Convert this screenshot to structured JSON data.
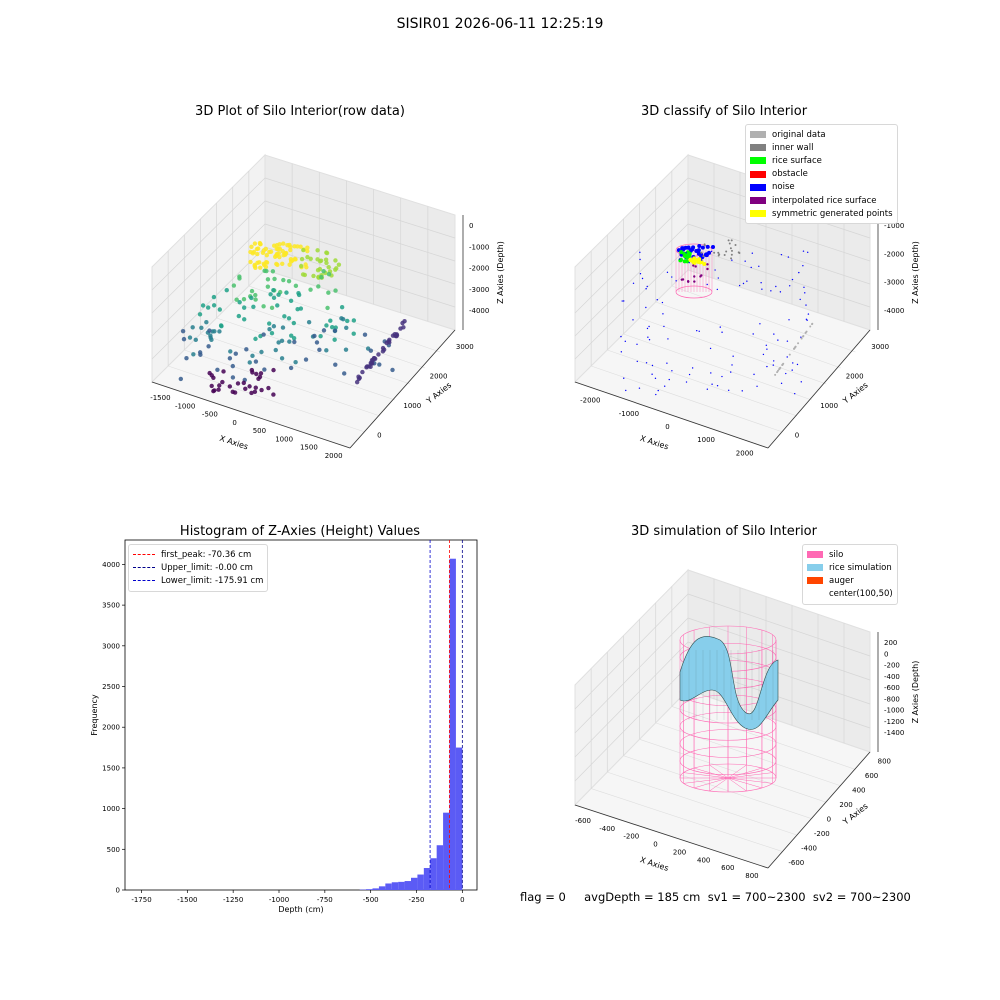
{
  "suptitle": "SISIR01 2026-06-11 12:25:19",
  "footer": "flag = 0     avgDepth = 185 cm  sv1 = 700~2300  sv2 = 700~2300",
  "colors": {
    "original": "#b0b0b0",
    "inner_wall": "#808080",
    "rice_surface": "#00ff00",
    "obstacle": "#ff0000",
    "noise": "#0000ff",
    "interpolated": "#800080",
    "symmetric": "#ffff00",
    "silo": "#ff69b4",
    "rice_sim": "#87ceeb",
    "auger": "#ff4500",
    "hist_bar": "#5b5bf5"
  },
  "chart_data": [
    {
      "type": "scatter",
      "projection": "3d",
      "title": "3D Plot of Silo Interior(row data)",
      "xlabel": "X Axies",
      "ylabel": "Y Axies",
      "zlabel": "Z Axies (Depth)",
      "xticks": [
        "-1500",
        "-1000",
        "-500",
        "0",
        "500",
        "1000",
        "1500",
        "2000"
      ],
      "yticks": [
        "0",
        "1000",
        "2000",
        "3000"
      ],
      "zticks": [
        "0",
        "-1000",
        "-2000",
        "-3000",
        "-4000"
      ],
      "colormap": "viridis (by Z depth)"
    },
    {
      "type": "scatter",
      "projection": "3d",
      "title": "3D classify of Silo Interior",
      "xlabel": "X Axies",
      "ylabel": "Y Axies",
      "zlabel": "Z Axies (Depth)",
      "xticks": [
        "-2000",
        "-1000",
        "0",
        "1000",
        "2000"
      ],
      "yticks": [
        "0",
        "1000",
        "2000",
        "3000"
      ],
      "zticks": [
        "-1000",
        "-2000",
        "-3000",
        "-4000"
      ],
      "legend_position": "upper right",
      "legend": [
        "original data",
        "inner wall",
        "rice surface",
        "obstacle",
        "noise",
        "interpolated rice surface",
        "symmetric generated points"
      ]
    },
    {
      "type": "bar",
      "title": "Histogram of Z-Axies (Height) Values",
      "xlabel": "Depth (cm)",
      "ylabel": "Frequency",
      "xlim": [
        -1840,
        80
      ],
      "ylim": [
        0,
        4300
      ],
      "xticks": [
        "-1750",
        "-1500",
        "-1250",
        "-1000",
        "-750",
        "-500",
        "-250",
        "0"
      ],
      "yticks": [
        "0",
        "500",
        "1000",
        "1500",
        "2000",
        "2500",
        "3000",
        "3500",
        "4000"
      ],
      "bins": [
        {
          "x": -560,
          "v": 5
        },
        {
          "x": -525,
          "v": 10
        },
        {
          "x": -490,
          "v": 20
        },
        {
          "x": -455,
          "v": 45
        },
        {
          "x": -420,
          "v": 80
        },
        {
          "x": -385,
          "v": 95
        },
        {
          "x": -350,
          "v": 100
        },
        {
          "x": -315,
          "v": 110
        },
        {
          "x": -280,
          "v": 150
        },
        {
          "x": -245,
          "v": 190
        },
        {
          "x": -210,
          "v": 270
        },
        {
          "x": -175,
          "v": 390
        },
        {
          "x": -140,
          "v": 550
        },
        {
          "x": -105,
          "v": 950
        },
        {
          "x": -70,
          "v": 4070
        },
        {
          "x": -35,
          "v": 1750
        },
        {
          "x": 0,
          "v": 0
        }
      ],
      "bin_width": 35,
      "lines": [
        {
          "label": "first_peak: -70.36 cm",
          "x": -70.36,
          "color": "#ff0000"
        },
        {
          "label": "Upper_limit: -0.00 cm",
          "x": 0,
          "color": "#00008b"
        },
        {
          "label": "Lower_limit: -175.91 cm",
          "x": -175.91,
          "color": "#0000cd"
        }
      ],
      "legend_position": "upper left"
    },
    {
      "type": "surface",
      "projection": "3d",
      "title": "3D simulation of Silo Interior",
      "xlabel": "X Axies",
      "ylabel": "Y Axies",
      "zlabel": "Z Axies (Depth)",
      "xticks": [
        "-600",
        "-400",
        "-200",
        "0",
        "200",
        "400",
        "600",
        "800"
      ],
      "yticks": [
        "-600",
        "-400",
        "-200",
        "0",
        "200",
        "400",
        "600",
        "800"
      ],
      "zticks": [
        "200",
        "0",
        "-200",
        "-400",
        "-600",
        "-800",
        "-1000",
        "-1200",
        "-1400"
      ],
      "legend_position": "upper right",
      "legend": [
        "silo",
        "rice simulation",
        "auger",
        "center(100,50)"
      ]
    }
  ]
}
